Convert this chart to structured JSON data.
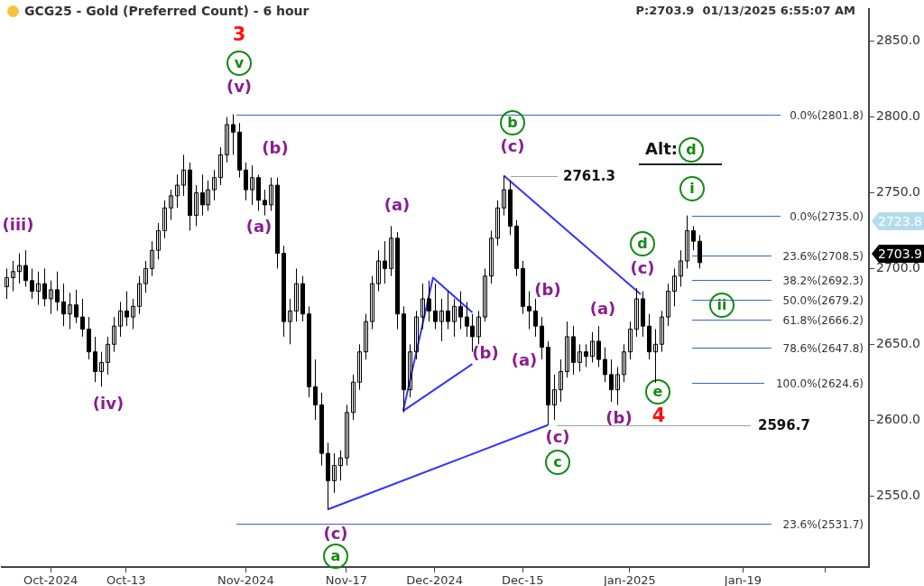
{
  "chart_data": {
    "type": "candlestick",
    "title": "GCG25 - Gold (Preferred Count) - 6 hour",
    "color": "#000000",
    "x": [
      "2024-09-24",
      "2024-09-25",
      "2024-09-26",
      "2024-09-27",
      "2024-09-28",
      "2024-09-29",
      "2024-09-30",
      "2024-10-01",
      "2024-10-02",
      "2024-10-03",
      "2024-10-04",
      "2024-10-05",
      "2024-10-06",
      "2024-10-07",
      "2024-10-08",
      "2024-10-09",
      "2024-10-10",
      "2024-10-11",
      "2024-10-12",
      "2024-10-13",
      "2024-10-14",
      "2024-10-15",
      "2024-10-16",
      "2024-10-17",
      "2024-10-18",
      "2024-10-19",
      "2024-10-20",
      "2024-10-21",
      "2024-10-22",
      "2024-10-23",
      "2024-10-24",
      "2024-10-25",
      "2024-10-26",
      "2024-10-27",
      "2024-10-28",
      "2024-10-29",
      "2024-10-30",
      "2024-10-31",
      "2024-11-01",
      "2024-11-02",
      "2024-11-03",
      "2024-11-04",
      "2024-11-05",
      "2024-11-06",
      "2024-11-07",
      "2024-11-08",
      "2024-11-09",
      "2024-11-10",
      "2024-11-11",
      "2024-11-12",
      "2024-11-13",
      "2024-11-14",
      "2024-11-15",
      "2024-11-16",
      "2024-11-17",
      "2024-11-18",
      "2024-11-19",
      "2024-11-20",
      "2024-11-21",
      "2024-11-22",
      "2024-11-23",
      "2024-11-24",
      "2024-11-25",
      "2024-11-26",
      "2024-11-27",
      "2024-11-28",
      "2024-11-29",
      "2024-11-30",
      "2024-12-01",
      "2024-12-02",
      "2024-12-03",
      "2024-12-04",
      "2024-12-05",
      "2024-12-06",
      "2024-12-07",
      "2024-12-08",
      "2024-12-09",
      "2024-12-10",
      "2024-12-11",
      "2024-12-12",
      "2024-12-13",
      "2024-12-14",
      "2024-12-15",
      "2024-12-16",
      "2024-12-17",
      "2024-12-18",
      "2024-12-19",
      "2024-12-20",
      "2024-12-21",
      "2024-12-22",
      "2024-12-23",
      "2024-12-24",
      "2024-12-25",
      "2024-12-26",
      "2024-12-27",
      "2024-12-28",
      "2024-12-29",
      "2024-12-30",
      "2024-12-31",
      "2025-01-01",
      "2025-01-02",
      "2025-01-03",
      "2025-01-04",
      "2025-01-05",
      "2025-01-06",
      "2025-01-07",
      "2025-01-08",
      "2025-01-09",
      "2025-01-10",
      "2025-01-11",
      "2025-01-12"
    ],
    "ohlc": [
      [
        2688,
        2700,
        2680,
        2694
      ],
      [
        2694,
        2705,
        2685,
        2698
      ],
      [
        2698,
        2710,
        2690,
        2702
      ],
      [
        2702,
        2712,
        2688,
        2692
      ],
      [
        2692,
        2700,
        2680,
        2685
      ],
      [
        2685,
        2698,
        2676,
        2690
      ],
      [
        2690,
        2700,
        2675,
        2680
      ],
      [
        2680,
        2692,
        2670,
        2686
      ],
      [
        2686,
        2698,
        2672,
        2678
      ],
      [
        2678,
        2690,
        2662,
        2670
      ],
      [
        2670,
        2684,
        2660,
        2676
      ],
      [
        2676,
        2686,
        2664,
        2668
      ],
      [
        2668,
        2680,
        2655,
        2660
      ],
      [
        2660,
        2668,
        2640,
        2645
      ],
      [
        2645,
        2655,
        2625,
        2632
      ],
      [
        2632,
        2645,
        2622,
        2638
      ],
      [
        2638,
        2655,
        2630,
        2650
      ],
      [
        2650,
        2668,
        2645,
        2662
      ],
      [
        2662,
        2678,
        2655,
        2672
      ],
      [
        2672,
        2685,
        2662,
        2668
      ],
      [
        2668,
        2680,
        2660,
        2675
      ],
      [
        2675,
        2695,
        2670,
        2690
      ],
      [
        2690,
        2705,
        2684,
        2700
      ],
      [
        2700,
        2718,
        2695,
        2712
      ],
      [
        2712,
        2730,
        2706,
        2725
      ],
      [
        2725,
        2745,
        2720,
        2740
      ],
      [
        2740,
        2752,
        2732,
        2748
      ],
      [
        2748,
        2762,
        2740,
        2755
      ],
      [
        2755,
        2775,
        2748,
        2765
      ],
      [
        2765,
        2770,
        2725,
        2735
      ],
      [
        2735,
        2755,
        2728,
        2750
      ],
      [
        2750,
        2762,
        2735,
        2742
      ],
      [
        2742,
        2758,
        2738,
        2752
      ],
      [
        2752,
        2765,
        2745,
        2760
      ],
      [
        2760,
        2780,
        2755,
        2775
      ],
      [
        2775,
        2800,
        2770,
        2795
      ],
      [
        2795,
        2801.8,
        2775,
        2790
      ],
      [
        2790,
        2796,
        2760,
        2765
      ],
      [
        2765,
        2770,
        2745,
        2752
      ],
      [
        2752,
        2768,
        2742,
        2760
      ],
      [
        2760,
        2762,
        2738,
        2745
      ],
      [
        2745,
        2752,
        2735,
        2742
      ],
      [
        2742,
        2760,
        2738,
        2755
      ],
      [
        2755,
        2760,
        2700,
        2710
      ],
      [
        2710,
        2715,
        2655,
        2665
      ],
      [
        2665,
        2680,
        2650,
        2672
      ],
      [
        2672,
        2700,
        2665,
        2690
      ],
      [
        2690,
        2695,
        2665,
        2670
      ],
      [
        2670,
        2675,
        2615,
        2622
      ],
      [
        2622,
        2640,
        2600,
        2610
      ],
      [
        2610,
        2618,
        2570,
        2578
      ],
      [
        2578,
        2585,
        2541,
        2560
      ],
      [
        2560,
        2578,
        2552,
        2570
      ],
      [
        2570,
        2580,
        2560,
        2575
      ],
      [
        2575,
        2610,
        2570,
        2605
      ],
      [
        2605,
        2630,
        2600,
        2625
      ],
      [
        2625,
        2650,
        2620,
        2645
      ],
      [
        2645,
        2670,
        2640,
        2665
      ],
      [
        2665,
        2695,
        2660,
        2690
      ],
      [
        2690,
        2712,
        2685,
        2705
      ],
      [
        2705,
        2718,
        2690,
        2700
      ],
      [
        2700,
        2728,
        2695,
        2720
      ],
      [
        2720,
        2724,
        2660,
        2670
      ],
      [
        2670,
        2675,
        2605,
        2620
      ],
      [
        2620,
        2650,
        2615,
        2645
      ],
      [
        2645,
        2672,
        2640,
        2668
      ],
      [
        2668,
        2690,
        2660,
        2680
      ],
      [
        2680,
        2692,
        2665,
        2672
      ],
      [
        2672,
        2690,
        2660,
        2665
      ],
      [
        2665,
        2680,
        2652,
        2672
      ],
      [
        2672,
        2685,
        2660,
        2665
      ],
      [
        2665,
        2680,
        2655,
        2675
      ],
      [
        2675,
        2685,
        2660,
        2668
      ],
      [
        2668,
        2678,
        2655,
        2662
      ],
      [
        2662,
        2670,
        2645,
        2655
      ],
      [
        2655,
        2672,
        2650,
        2668
      ],
      [
        2668,
        2700,
        2665,
        2695
      ],
      [
        2695,
        2725,
        2690,
        2720
      ],
      [
        2720,
        2745,
        2715,
        2740
      ],
      [
        2740,
        2761.3,
        2735,
        2752
      ],
      [
        2752,
        2758,
        2722,
        2728
      ],
      [
        2728,
        2732,
        2695,
        2700
      ],
      [
        2700,
        2705,
        2670,
        2675
      ],
      [
        2675,
        2685,
        2660,
        2672
      ],
      [
        2672,
        2680,
        2655,
        2662
      ],
      [
        2662,
        2668,
        2640,
        2648
      ],
      [
        2648,
        2652,
        2596.7,
        2610
      ],
      [
        2610,
        2630,
        2600,
        2620
      ],
      [
        2620,
        2640,
        2612,
        2632
      ],
      [
        2632,
        2665,
        2628,
        2655
      ],
      [
        2655,
        2662,
        2630,
        2638
      ],
      [
        2638,
        2650,
        2632,
        2645
      ],
      [
        2645,
        2650,
        2635,
        2642
      ],
      [
        2642,
        2658,
        2638,
        2652
      ],
      [
        2652,
        2662,
        2635,
        2640
      ],
      [
        2640,
        2648,
        2625,
        2630
      ],
      [
        2630,
        2640,
        2612,
        2620
      ],
      [
        2620,
        2635,
        2610,
        2630
      ],
      [
        2630,
        2650,
        2625,
        2645
      ],
      [
        2645,
        2665,
        2640,
        2660
      ],
      [
        2660,
        2687,
        2655,
        2680
      ],
      [
        2680,
        2685,
        2655,
        2662
      ],
      [
        2662,
        2670,
        2640,
        2645
      ],
      [
        2645,
        2660,
        2624.6,
        2650
      ],
      [
        2650,
        2672,
        2645,
        2668
      ],
      [
        2668,
        2690,
        2662,
        2685
      ],
      [
        2685,
        2700,
        2675,
        2695
      ],
      [
        2695,
        2712,
        2688,
        2705
      ],
      [
        2705,
        2735,
        2700,
        2725
      ],
      [
        2725,
        2728,
        2712,
        2718
      ],
      [
        2718,
        2722,
        2700,
        2703.9
      ]
    ],
    "series": [
      {
        "type": "line",
        "color": "#3333ff",
        "x": [
          "2024-11-14",
          "2024-12-19"
        ],
        "values": [
          2541,
          2596.7
        ]
      },
      {
        "type": "line",
        "color": "#3333ff",
        "x": [
          "2024-12-12",
          "2025-01-02T18:00"
        ],
        "values": [
          2761.3,
          2683
        ]
      },
      {
        "type": "line",
        "color": "#3333ff",
        "x": [
          "2024-11-26",
          "2024-11-30T18:00",
          "2024-12-07"
        ],
        "values": [
          2606,
          2694,
          2671
        ]
      },
      {
        "type": "line",
        "color": "#3333ff",
        "x": [
          "2024-11-26",
          "2024-12-07"
        ],
        "values": [
          2606,
          2637
        ]
      }
    ],
    "xlim": [
      "2024-09-23T06:00",
      "2025-02-08"
    ],
    "xticks": [
      {
        "value": "2024-10-01",
        "label": "Oct-2024"
      },
      {
        "value": "2024-10-13",
        "label": "Oct-13"
      },
      {
        "value": "2024-11-01",
        "label": "Nov-2024"
      },
      {
        "value": "2024-11-17",
        "label": "Nov-17"
      },
      {
        "value": "2024-12-01",
        "label": "Dec-2024"
      },
      {
        "value": "2024-12-15",
        "label": "Dec-15"
      },
      {
        "value": "2025-01-01",
        "label": "Jan-2025"
      },
      {
        "value": "2025-01-19",
        "label": "Jan-19"
      },
      {
        "value": "2025-02-01",
        "label": null
      }
    ],
    "ylim": [
      2503,
      2871
    ],
    "yticks": [
      {
        "value": 2550,
        "label": "2550.0"
      },
      {
        "value": 2600,
        "label": "2600.0"
      },
      {
        "value": 2650,
        "label": "2650.0"
      },
      {
        "value": 2700,
        "label": "2700.0"
      },
      {
        "value": 2750,
        "label": "2750.0"
      },
      {
        "value": 2800,
        "label": "2800.0"
      },
      {
        "value": 2850,
        "label": "2850.0"
      }
    ],
    "ref_lines": [
      {
        "axis": "y",
        "value": 2801.8,
        "label": "0.0%(2801.8)",
        "color": "#3a62d0"
      },
      {
        "axis": "y",
        "value": 2735.0,
        "label": "0.0%(2735.0)",
        "color": "#3a62d0"
      },
      {
        "axis": "y",
        "value": 2708.5,
        "label": "23.6%(2708.5)",
        "color": "#3a62d0"
      },
      {
        "axis": "y",
        "value": 2692.3,
        "label": "38.2%(2692.3)",
        "color": "#3a62d0"
      },
      {
        "axis": "y",
        "value": 2679.2,
        "label": "50.0%(2679.2)",
        "color": "#3a62d0"
      },
      {
        "axis": "y",
        "value": 2666.2,
        "label": "61.8%(2666.2)",
        "color": "#3a62d0"
      },
      {
        "axis": "y",
        "value": 2647.8,
        "label": "78.6%(2647.8)",
        "color": "#3a62d0"
      },
      {
        "axis": "y",
        "value": 2624.6,
        "label": "100.0%(2624.6)",
        "color": "#3a62d0"
      },
      {
        "axis": "y",
        "value": 2531.7,
        "label": "23.6%(2531.7)",
        "color": "#3a62d0"
      },
      {
        "axis": "y",
        "value": 2761.3,
        "label": "2761.3",
        "color": "#a0a0a0"
      },
      {
        "axis": "y",
        "value": 2596.7,
        "label": "2596.7",
        "color": "#a0a0a0"
      }
    ],
    "annotations": [
      "P:2703.9  01/13/2025 6:55:07 AM",
      "3",
      "v",
      "(v)",
      "(b)",
      "(a)",
      "(iii)",
      "(iv)",
      "(c)",
      "a",
      "(a)",
      "(b)",
      "b",
      "(c)",
      "Alt:",
      "d",
      "i",
      "d",
      "(c)",
      "ii",
      "(b)",
      "(a)",
      "(a)",
      "(b)",
      "e",
      "4",
      "(c)",
      "c",
      "2723.8",
      "2703.9"
    ]
  }
}
